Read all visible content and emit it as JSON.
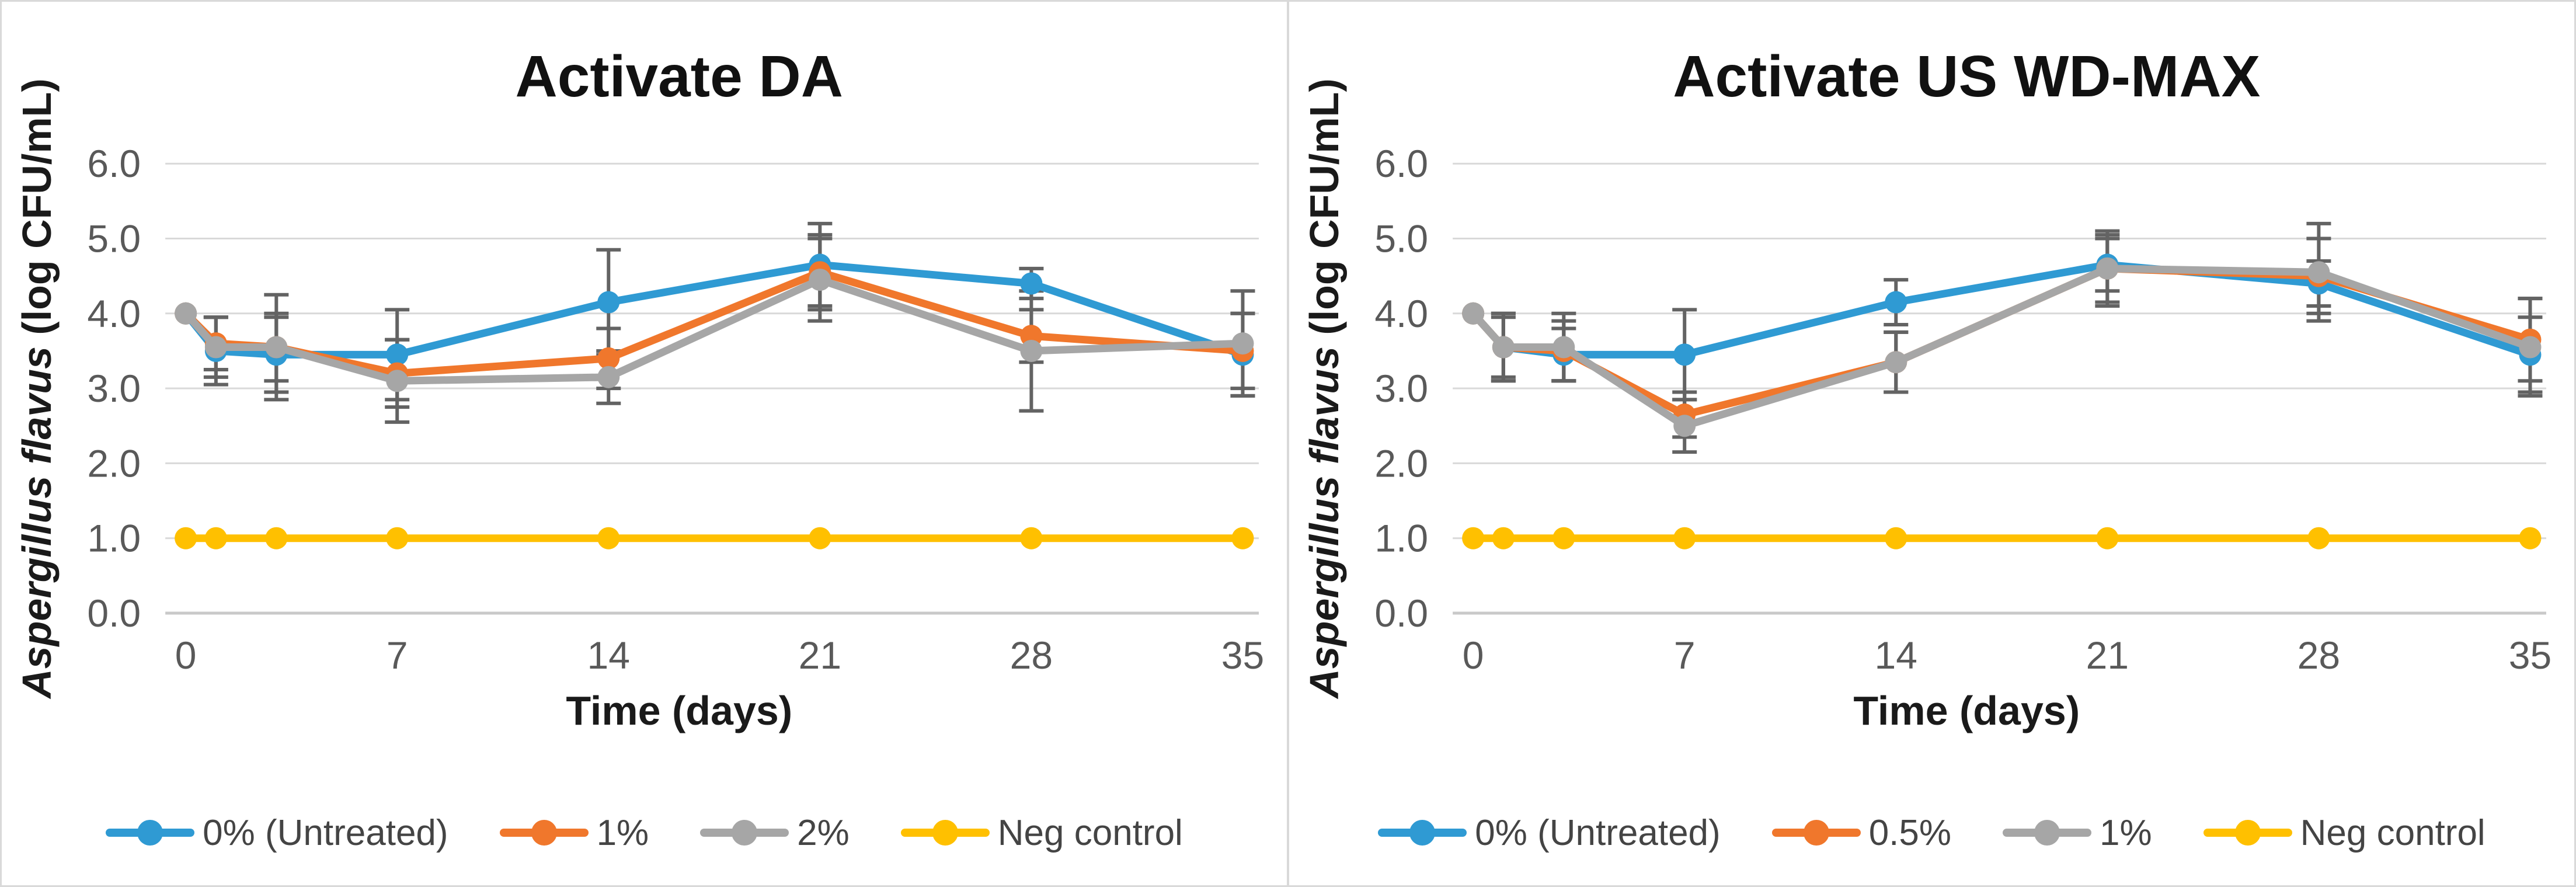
{
  "style": {
    "background": "#ffffff",
    "border_color": "#d9d9d9",
    "grid_color": "#d9d9d9",
    "baseline_color": "#c9c9c9",
    "tick_color": "#595959",
    "title_color": "#111111",
    "axis_label_color": "#1a1a1a",
    "legend_text_color": "#444444",
    "error_bar_color": "#636363"
  },
  "chart_data": [
    {
      "type": "line",
      "title": "Activate DA",
      "ylabel_italic": "Aspergillus flavus",
      "ylabel_plain": " (log CFU/mL)",
      "xlabel": "Time (days)",
      "ylim": [
        0.0,
        6.0
      ],
      "y_ticks": [
        "6.0",
        "5.0",
        "4.0",
        "3.0",
        "2.0",
        "1.0",
        "0.0"
      ],
      "y_tick_values": [
        6,
        5,
        4,
        3,
        2,
        1,
        0
      ],
      "x_tick_labels": [
        "0",
        "7",
        "14",
        "21",
        "28",
        "35"
      ],
      "x_tick_values": [
        0,
        7,
        14,
        21,
        28,
        35
      ],
      "x": [
        0,
        1,
        3,
        7,
        14,
        21,
        28,
        35
      ],
      "grid": true,
      "legend_position": "bottom",
      "series": [
        {
          "name": "0% (Untreated)",
          "color": "#2F9AD3",
          "values": [
            4.0,
            3.5,
            3.45,
            3.45,
            4.15,
            4.65,
            4.4,
            3.45
          ],
          "err": [
            0,
            0.45,
            0.5,
            0.6,
            0.7,
            0.55,
            0.2,
            0.55
          ]
        },
        {
          "name": "1%",
          "color": "#F0772C",
          "values": [
            4.0,
            3.6,
            3.55,
            3.2,
            3.4,
            4.55,
            3.7,
            3.5
          ],
          "err": [
            0,
            0.35,
            0.45,
            0.45,
            0.4,
            0.5,
            0.35,
            0.5
          ]
        },
        {
          "name": "2%",
          "color": "#A6A6A6",
          "values": [
            4.0,
            3.55,
            3.55,
            3.1,
            3.15,
            4.45,
            3.5,
            3.6
          ],
          "err": [
            0,
            0.4,
            0.7,
            0.55,
            0.35,
            0.55,
            0.8,
            0.7
          ]
        },
        {
          "name": "Neg control",
          "color": "#FFC000",
          "values": [
            1.0,
            1.0,
            1.0,
            1.0,
            1.0,
            1.0,
            1.0,
            1.0
          ],
          "err": [
            0,
            0,
            0,
            0,
            0,
            0,
            0,
            0
          ]
        }
      ]
    },
    {
      "type": "line",
      "title": "Activate US WD-MAX",
      "ylabel_italic": "Aspergillus flavus",
      "ylabel_plain": " (log CFU/mL)",
      "xlabel": "Time (days)",
      "ylim": [
        0.0,
        6.0
      ],
      "y_ticks": [
        "6.0",
        "5.0",
        "4.0",
        "3.0",
        "2.0",
        "1.0",
        "0.0"
      ],
      "y_tick_values": [
        6,
        5,
        4,
        3,
        2,
        1,
        0
      ],
      "x_tick_labels": [
        "0",
        "7",
        "14",
        "21",
        "28",
        "35"
      ],
      "x_tick_values": [
        0,
        7,
        14,
        21,
        28,
        35
      ],
      "x": [
        0,
        1,
        3,
        7,
        14,
        21,
        28,
        35
      ],
      "grid": true,
      "legend_position": "bottom",
      "series": [
        {
          "name": "0% (Untreated)",
          "color": "#2F9AD3",
          "values": [
            4.0,
            3.55,
            3.45,
            3.45,
            4.15,
            4.65,
            4.4,
            3.45
          ],
          "err": [
            0,
            0.45,
            0.35,
            0.6,
            0.3,
            0.35,
            0.3,
            0.5
          ]
        },
        {
          "name": "0.5%",
          "color": "#F0772C",
          "values": [
            4.0,
            3.55,
            3.5,
            2.65,
            3.35,
            4.6,
            4.5,
            3.65
          ],
          "err": [
            0,
            0.4,
            0.4,
            0.3,
            0.4,
            0.45,
            0.5,
            0.55
          ]
        },
        {
          "name": "1%",
          "color": "#A6A6A6",
          "values": [
            4.0,
            3.55,
            3.55,
            2.5,
            3.35,
            4.6,
            4.55,
            3.55
          ],
          "err": [
            0,
            0.45,
            0.45,
            0.35,
            0.4,
            0.5,
            0.65,
            0.65
          ]
        },
        {
          "name": "Neg control",
          "color": "#FFC000",
          "values": [
            1.0,
            1.0,
            1.0,
            1.0,
            1.0,
            1.0,
            1.0,
            1.0
          ],
          "err": [
            0,
            0,
            0,
            0,
            0,
            0,
            0,
            0
          ]
        }
      ]
    }
  ]
}
